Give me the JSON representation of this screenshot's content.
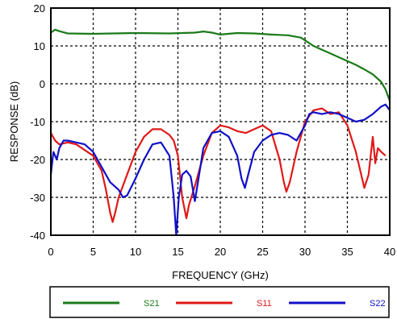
{
  "chart_data": {
    "type": "line",
    "xlabel": "FREQUENCY (GHz)",
    "ylabel": "RESPONSE (dB)",
    "xlim": [
      0,
      40
    ],
    "ylim": [
      -40,
      20
    ],
    "xticks": [
      0,
      5,
      10,
      15,
      20,
      25,
      30,
      35,
      40
    ],
    "yticks": [
      -40,
      -30,
      -20,
      -10,
      0,
      10,
      20
    ],
    "grid": true,
    "legend_position": "bottom",
    "series": [
      {
        "name": "S21",
        "color": "#1a7a1a",
        "points": [
          [
            0,
            13.5
          ],
          [
            0.5,
            14.3
          ],
          [
            1,
            13.9
          ],
          [
            2,
            13.3
          ],
          [
            5,
            13.2
          ],
          [
            10,
            13.4
          ],
          [
            14,
            13.3
          ],
          [
            17,
            13.5
          ],
          [
            18,
            13.8
          ],
          [
            19,
            13.5
          ],
          [
            20,
            13.0
          ],
          [
            22,
            13.4
          ],
          [
            24,
            13.3
          ],
          [
            26,
            13.0
          ],
          [
            28,
            12.8
          ],
          [
            29.5,
            12.2
          ],
          [
            31,
            10.0
          ],
          [
            32,
            9.0
          ],
          [
            33,
            8.0
          ],
          [
            34,
            7.0
          ],
          [
            35,
            6.0
          ],
          [
            36,
            5.0
          ],
          [
            37,
            3.8
          ],
          [
            38,
            2.5
          ],
          [
            38.5,
            1.5
          ],
          [
            39,
            0.5
          ],
          [
            39.5,
            -1.5
          ],
          [
            40,
            -4.5
          ]
        ]
      },
      {
        "name": "S11",
        "color": "#e01818",
        "points": [
          [
            0,
            -13.0
          ],
          [
            0.5,
            -15.0
          ],
          [
            1,
            -16.0
          ],
          [
            2,
            -15.5
          ],
          [
            3,
            -16.0
          ],
          [
            4,
            -17.5
          ],
          [
            5,
            -19.0
          ],
          [
            6,
            -23.0
          ],
          [
            6.5,
            -28.0
          ],
          [
            7,
            -34.0
          ],
          [
            7.3,
            -36.5
          ],
          [
            7.6,
            -34.0
          ],
          [
            8,
            -30.0
          ],
          [
            8.5,
            -27.0
          ],
          [
            9,
            -24.0
          ],
          [
            10,
            -18.0
          ],
          [
            11,
            -14.0
          ],
          [
            12,
            -12.0
          ],
          [
            13,
            -12.0
          ],
          [
            14,
            -13.5
          ],
          [
            14.5,
            -15.0
          ],
          [
            15,
            -19.0
          ],
          [
            15.5,
            -30.0
          ],
          [
            16,
            -35.5
          ],
          [
            16.3,
            -32.0
          ],
          [
            17,
            -27.0
          ],
          [
            18,
            -19.0
          ],
          [
            19,
            -13.0
          ],
          [
            20,
            -11.0
          ],
          [
            21,
            -11.5
          ],
          [
            22,
            -12.5
          ],
          [
            23,
            -13.0
          ],
          [
            24,
            -12.0
          ],
          [
            25,
            -11.0
          ],
          [
            26,
            -12.5
          ],
          [
            27,
            -20.0
          ],
          [
            27.5,
            -26.0
          ],
          [
            27.8,
            -28.5
          ],
          [
            28.2,
            -26.0
          ],
          [
            29,
            -18.0
          ],
          [
            30,
            -10.0
          ],
          [
            31,
            -7.0
          ],
          [
            32,
            -6.5
          ],
          [
            33,
            -8.0
          ],
          [
            34,
            -7.5
          ],
          [
            35,
            -11.0
          ],
          [
            36,
            -18.0
          ],
          [
            37,
            -27.5
          ],
          [
            37.5,
            -24.0
          ],
          [
            38,
            -14.0
          ],
          [
            38.3,
            -21.0
          ],
          [
            38.6,
            -17.0
          ],
          [
            39,
            -18.0
          ],
          [
            39.5,
            -19.0
          ]
        ]
      },
      {
        "name": "S22",
        "color": "#1010c8",
        "points": [
          [
            0,
            -24.0
          ],
          [
            0.3,
            -18.0
          ],
          [
            0.7,
            -20.0
          ],
          [
            1,
            -17.0
          ],
          [
            1.5,
            -15.0
          ],
          [
            2,
            -15.0
          ],
          [
            3,
            -15.5
          ],
          [
            4,
            -16.0
          ],
          [
            5,
            -18.0
          ],
          [
            6,
            -22.0
          ],
          [
            7,
            -26.0
          ],
          [
            8,
            -28.0
          ],
          [
            8.5,
            -30.0
          ],
          [
            9,
            -29.5
          ],
          [
            10,
            -25.0
          ],
          [
            11,
            -20.0
          ],
          [
            12,
            -16.0
          ],
          [
            13,
            -15.5
          ],
          [
            14,
            -19.0
          ],
          [
            14.5,
            -30.0
          ],
          [
            14.8,
            -40.0
          ],
          [
            15.1,
            -30.0
          ],
          [
            15.5,
            -24.0
          ],
          [
            16,
            -23.0
          ],
          [
            16.5,
            -24.5
          ],
          [
            17,
            -31.0
          ],
          [
            17.5,
            -24.0
          ],
          [
            18,
            -17.0
          ],
          [
            19,
            -13.0
          ],
          [
            20,
            -12.5
          ],
          [
            21,
            -14.0
          ],
          [
            22,
            -19.0
          ],
          [
            22.5,
            -25.0
          ],
          [
            22.9,
            -27.5
          ],
          [
            23.3,
            -24.0
          ],
          [
            24,
            -18.0
          ],
          [
            25,
            -15.0
          ],
          [
            26,
            -13.5
          ],
          [
            27,
            -13.0
          ],
          [
            28,
            -13.5
          ],
          [
            29,
            -15.0
          ],
          [
            30,
            -11.0
          ],
          [
            30.5,
            -8.0
          ],
          [
            31,
            -7.5
          ],
          [
            32,
            -8.0
          ],
          [
            33,
            -7.5
          ],
          [
            34,
            -8.0
          ],
          [
            35,
            -9.0
          ],
          [
            36,
            -10.0
          ],
          [
            37,
            -9.5
          ],
          [
            38,
            -8.0
          ],
          [
            39,
            -6.0
          ],
          [
            39.5,
            -5.5
          ],
          [
            40,
            -7.0
          ]
        ]
      }
    ]
  }
}
